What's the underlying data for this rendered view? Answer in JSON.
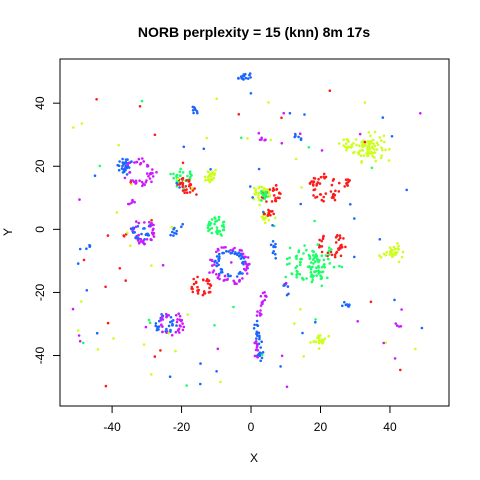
{
  "chart_data": {
    "type": "scatter",
    "title": "NORB perplexity = 15 (knn) 8m 17s",
    "xlabel": "X",
    "ylabel": "Y",
    "xlim": [
      -55,
      57
    ],
    "ylim": [
      -56,
      54
    ],
    "x_ticks": [
      -40,
      -20,
      0,
      20,
      40
    ],
    "y_ticks": [
      -40,
      -20,
      0,
      20,
      40
    ],
    "grid": false,
    "legend": "none",
    "colors": {
      "red": "#ff1a1a",
      "yellow": "#ccff1a",
      "green": "#1aff66",
      "blue": "#1a66ff",
      "magenta": "#cc1aff"
    },
    "clusters": [
      {
        "color": "blue",
        "shape": "line",
        "x1": -4,
        "y1": 48,
        "x2": 0,
        "y2": 49,
        "n": 16,
        "spread": 0.6
      },
      {
        "color": "blue",
        "shape": "line",
        "x1": -17,
        "y1": 39,
        "x2": -15,
        "y2": 36,
        "n": 8,
        "spread": 0.4
      },
      {
        "color": "blue",
        "shape": "ring",
        "cx": -36,
        "cy": 20,
        "r": 1.5,
        "n": 30,
        "spread": 0.6
      },
      {
        "color": "magenta",
        "shape": "ring",
        "cx": -32,
        "cy": 18,
        "r": 3.5,
        "n": 40,
        "spread": 0.6
      },
      {
        "color": "green",
        "shape": "ring",
        "cx": -20,
        "cy": 16,
        "r": 2,
        "n": 30,
        "spread": 0.7
      },
      {
        "color": "red",
        "shape": "ring",
        "cx": -19,
        "cy": 14,
        "r": 1.8,
        "n": 28,
        "spread": 0.6
      },
      {
        "color": "yellow",
        "shape": "blob",
        "cx": -12,
        "cy": 17,
        "r": 2,
        "n": 25
      },
      {
        "color": "yellow",
        "shape": "blob",
        "cx": 34,
        "cy": 26,
        "r": 3.5,
        "n": 90
      },
      {
        "color": "yellow",
        "shape": "blob",
        "cx": 28,
        "cy": 27,
        "r": 1.5,
        "n": 15
      },
      {
        "color": "red",
        "shape": "ring",
        "cx": 21,
        "cy": 13,
        "r": 3.5,
        "n": 45,
        "spread": 0.6
      },
      {
        "color": "red",
        "shape": "line",
        "x1": 26,
        "y1": 14,
        "x2": 29,
        "y2": 16,
        "n": 10,
        "spread": 0.6
      },
      {
        "color": "red",
        "shape": "ring",
        "cx": 6,
        "cy": 11,
        "r": 2,
        "n": 30,
        "spread": 0.5
      },
      {
        "color": "yellow",
        "shape": "ring",
        "cx": 3,
        "cy": 11,
        "r": 2,
        "n": 25,
        "spread": 0.6
      },
      {
        "color": "green",
        "shape": "blob",
        "cx": 4,
        "cy": 11,
        "r": 1.5,
        "n": 15
      },
      {
        "color": "yellow",
        "shape": "blob",
        "cx": 4,
        "cy": 4,
        "r": 1.5,
        "n": 15
      },
      {
        "color": "red",
        "shape": "blob",
        "cx": 5,
        "cy": 5,
        "r": 1.2,
        "n": 12
      },
      {
        "color": "magenta",
        "shape": "ring",
        "cx": -31,
        "cy": -1,
        "r": 3,
        "n": 40,
        "spread": 0.5
      },
      {
        "color": "blue",
        "shape": "ring",
        "cx": -32,
        "cy": -1,
        "r": 2,
        "n": 20,
        "spread": 0.5
      },
      {
        "color": "blue",
        "shape": "line",
        "x1": -24,
        "y1": -3,
        "x2": -20,
        "y2": 1,
        "n": 10,
        "spread": 0.5
      },
      {
        "color": "green",
        "shape": "ring",
        "cx": -10,
        "cy": 1,
        "r": 2.2,
        "n": 35,
        "spread": 0.6
      },
      {
        "color": "blue",
        "shape": "ring",
        "cx": -6,
        "cy": -11,
        "r": 4,
        "n": 50,
        "spread": 0.5
      },
      {
        "color": "magenta",
        "shape": "ring",
        "cx": -6,
        "cy": -11,
        "r": 5.2,
        "n": 55,
        "spread": 0.5
      },
      {
        "color": "red",
        "shape": "ring",
        "cx": -14,
        "cy": -18,
        "r": 2.2,
        "n": 30,
        "spread": 0.6
      },
      {
        "color": "red",
        "shape": "ring",
        "cx": 23,
        "cy": -5,
        "r": 3,
        "n": 35,
        "spread": 0.6
      },
      {
        "color": "green",
        "shape": "blob",
        "cx": 17,
        "cy": -11,
        "r": 5.5,
        "n": 100
      },
      {
        "color": "yellow",
        "shape": "blob",
        "cx": 41,
        "cy": -7,
        "r": 2,
        "n": 30
      },
      {
        "color": "yellow",
        "shape": "blob",
        "cx": 20,
        "cy": -35,
        "r": 1.7,
        "n": 25
      },
      {
        "color": "blue",
        "shape": "line",
        "x1": 6,
        "y1": -4,
        "x2": 7,
        "y2": -10,
        "n": 10,
        "spread": 0.4
      },
      {
        "color": "blue",
        "shape": "line",
        "x1": 9,
        "y1": -17,
        "x2": 11,
        "y2": -21,
        "n": 8,
        "spread": 0.4
      },
      {
        "color": "magenta",
        "shape": "line",
        "x1": 2,
        "y1": -28,
        "x2": 4,
        "y2": -20,
        "n": 18,
        "spread": 0.5
      },
      {
        "color": "blue",
        "shape": "line",
        "x1": 2,
        "y1": -34,
        "x2": 3,
        "y2": -42,
        "n": 18,
        "spread": 0.5
      },
      {
        "color": "blue",
        "shape": "line",
        "x1": 2,
        "y1": -28,
        "x2": 2,
        "y2": -34,
        "n": 10,
        "spread": 0.5
      },
      {
        "color": "magenta",
        "shape": "line",
        "x1": 1,
        "y1": -35,
        "x2": 2,
        "y2": -41,
        "n": 10,
        "spread": 0.5
      },
      {
        "color": "blue",
        "shape": "ring",
        "cx": -25,
        "cy": -30,
        "r": 2.5,
        "n": 30,
        "spread": 0.5
      },
      {
        "color": "magenta",
        "shape": "ring",
        "cx": -23,
        "cy": -30,
        "r": 3,
        "n": 30,
        "spread": 0.5
      },
      {
        "color": "blue",
        "shape": "line",
        "x1": 26,
        "y1": -24,
        "x2": 28,
        "y2": -24,
        "n": 8,
        "spread": 0.4
      },
      {
        "color": "magenta",
        "shape": "line",
        "x1": -35,
        "y1": 8,
        "x2": -33,
        "y2": 10,
        "n": 6,
        "spread": 0.4
      },
      {
        "color": "blue",
        "shape": "line",
        "x1": 12,
        "y1": 30,
        "x2": 15,
        "y2": 29,
        "n": 6,
        "spread": 0.4
      },
      {
        "color": "magenta",
        "shape": "line",
        "x1": 2,
        "y1": 30,
        "x2": 4,
        "y2": 28,
        "n": 6,
        "spread": 0.4
      },
      {
        "color": "blue",
        "shape": "line",
        "x1": -46,
        "y1": -5,
        "x2": -48,
        "y2": -7,
        "n": 4,
        "spread": 0.3
      },
      {
        "color": "magenta",
        "shape": "line",
        "x1": 42,
        "y1": -30,
        "x2": 43,
        "y2": -31,
        "n": 4,
        "spread": 0.3
      },
      {
        "color": "red",
        "shape": "line",
        "x1": -37,
        "y1": -2,
        "x2": -36,
        "y2": -2,
        "n": 3,
        "spread": 0.3
      }
    ],
    "scatter_noise": {
      "n": 130,
      "xrange": [
        -52,
        50
      ],
      "yrange": [
        -50,
        44
      ]
    }
  }
}
